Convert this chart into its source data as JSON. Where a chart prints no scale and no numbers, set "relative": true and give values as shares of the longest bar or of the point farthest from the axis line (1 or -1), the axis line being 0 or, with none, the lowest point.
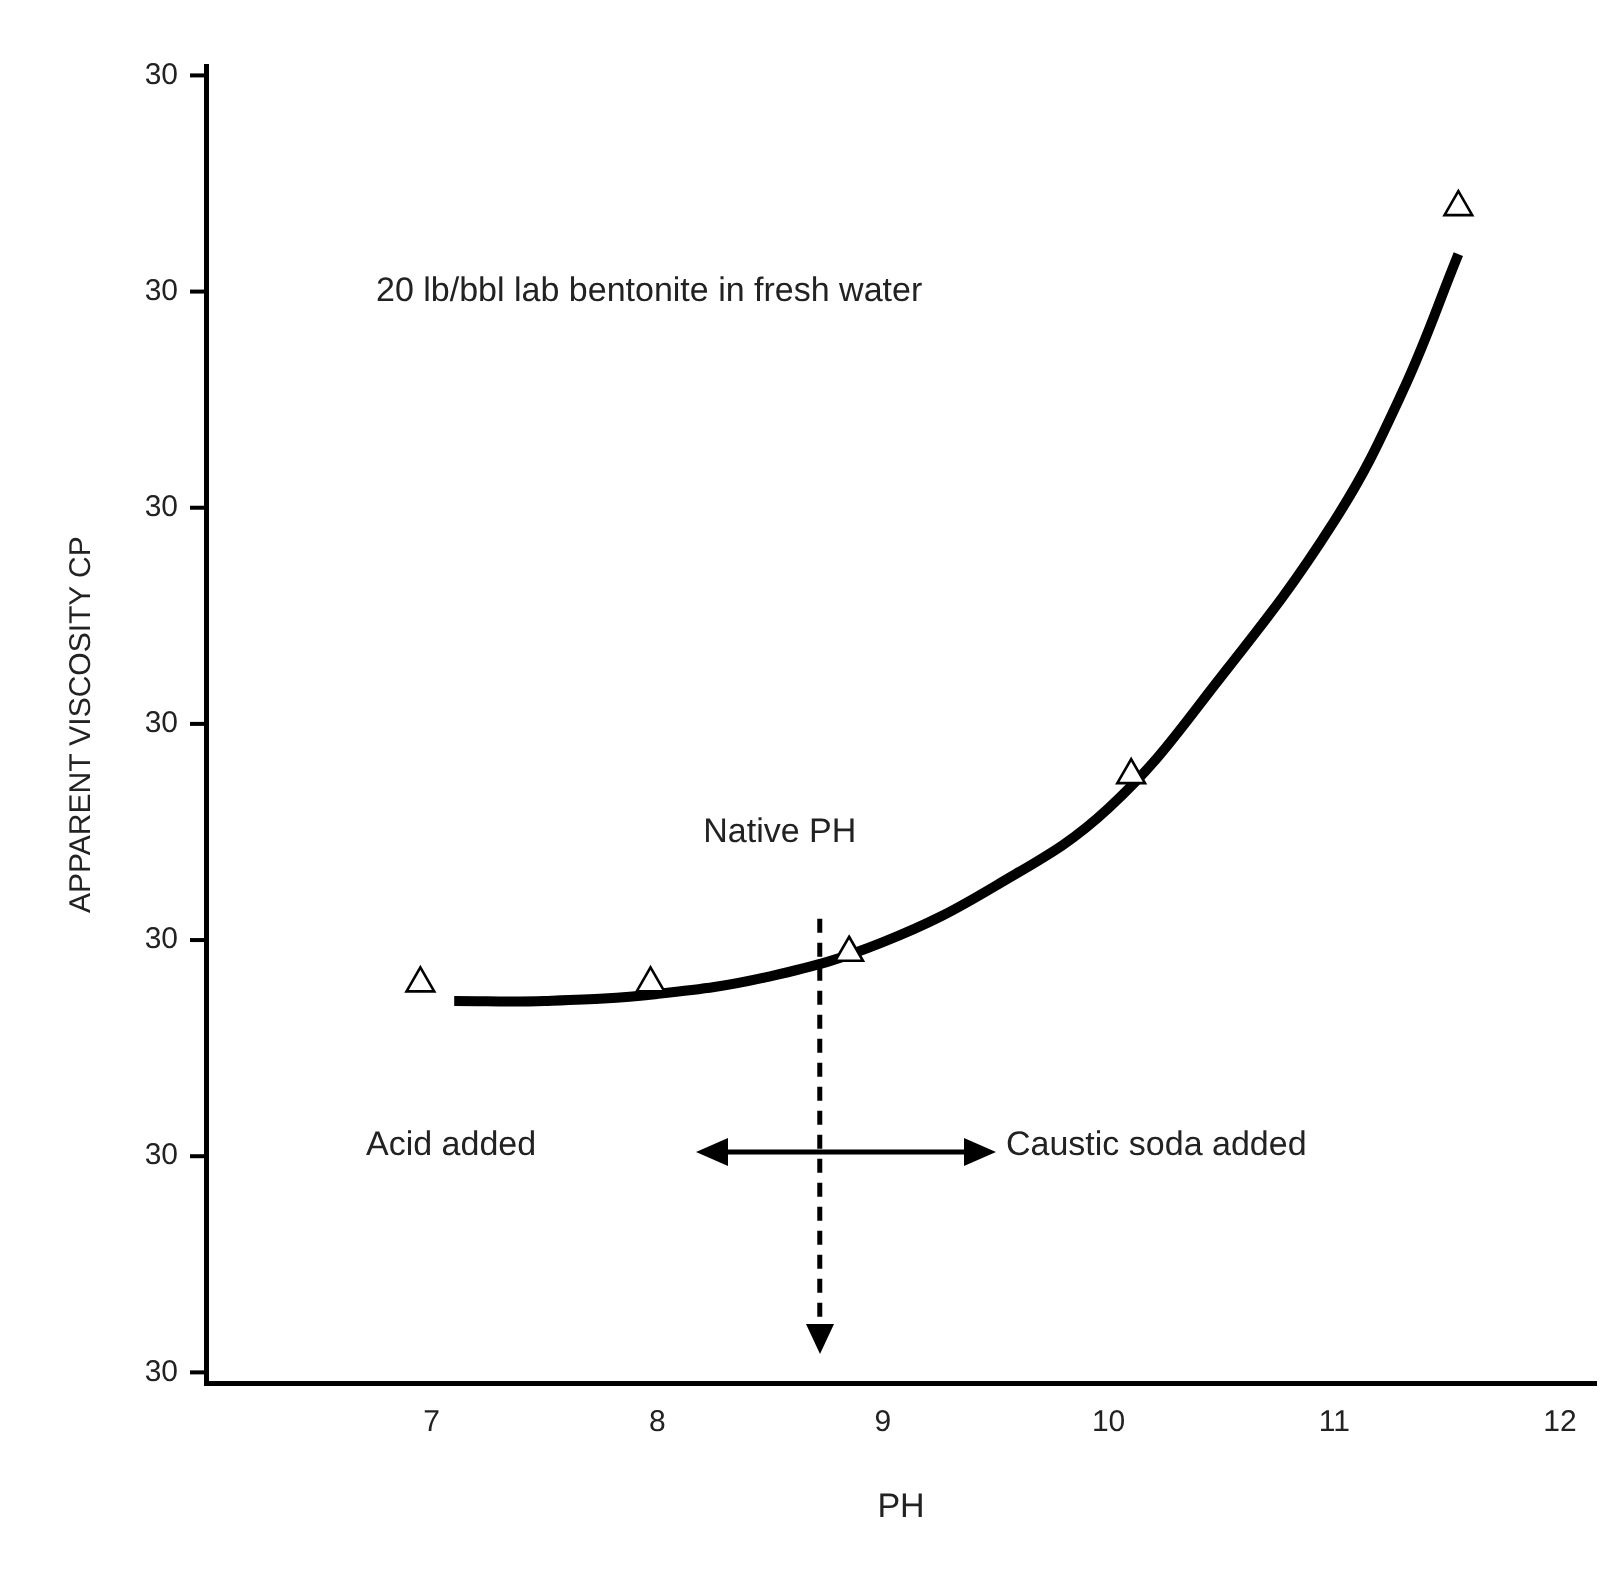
{
  "chart_data": {
    "type": "line",
    "xlabel": "PH",
    "ylabel": "APPARENT VISCOSITY CP",
    "xlim": [
      6,
      12.16
    ],
    "xticks": [
      7,
      8,
      9,
      10,
      11,
      12
    ],
    "relative": true,
    "grid": false,
    "legend": false,
    "annotations": [
      "20 lb/bbl lab bentonite in fresh water",
      "Acid added",
      "Caustic soda added",
      "30",
      "30",
      "30",
      "30",
      "30",
      "30",
      "30"
    ],
    "ref_lines": [
      {
        "axis": "x",
        "value": 8.72,
        "label": "Native PH",
        "line_style": "dashed"
      }
    ],
    "series": [
      {
        "type": "line",
        "color": "#000000",
        "marker": "none",
        "x": [
          7.1,
          7.5,
          8,
          8.5,
          9,
          9.5,
          10,
          10.5,
          11,
          11.3,
          11.55
        ],
        "values": [
          0.325,
          0.325,
          0.331,
          0.346,
          0.375,
          0.423,
          0.489,
          0.601,
          0.733,
          0.842,
          0.96
        ]
      },
      {
        "type": "scatter",
        "color": "#000000",
        "marker": "triangle",
        "x": [
          6.95,
          7.97,
          8.85,
          10.1,
          11.55
        ],
        "values": [
          0.34,
          0.34,
          0.366,
          0.517,
          1
        ]
      }
    ]
  }
}
